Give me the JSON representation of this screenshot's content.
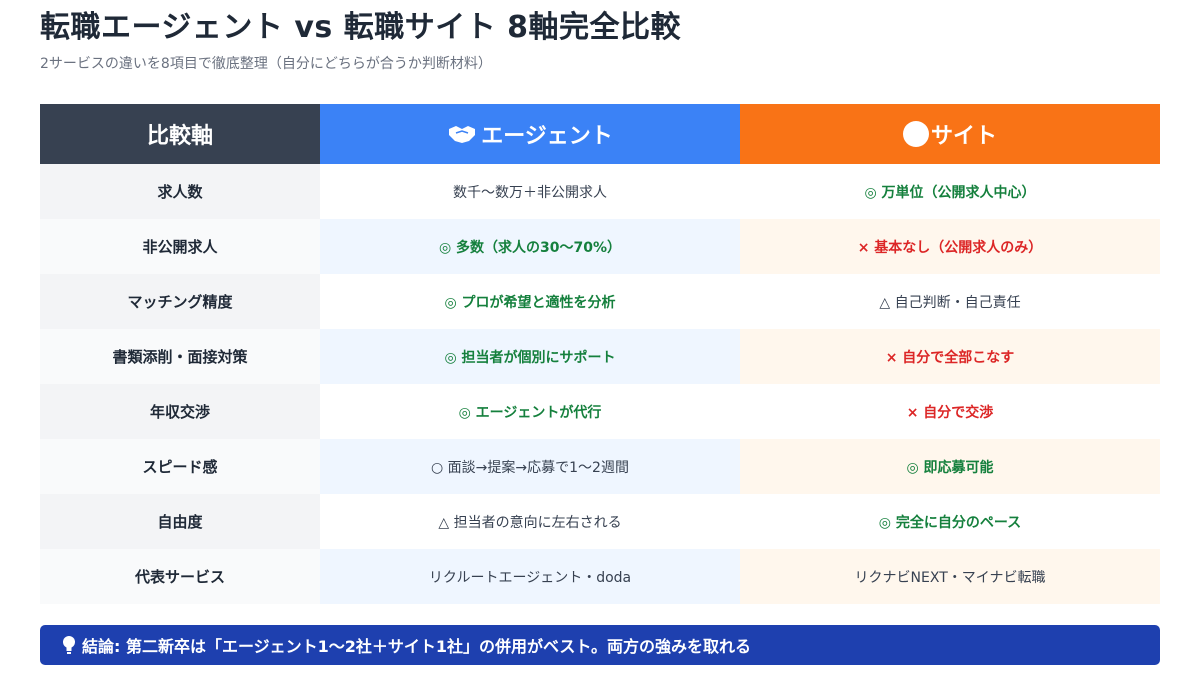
{
  "header": {
    "title": "転職エージェント vs 転職サイト 8軸完全比較",
    "subtitle": "2サービスの違いを8項目で徹底整理（自分にどちらが合うか判断材料）"
  },
  "table": {
    "columns": {
      "axis": "比較軸",
      "agent": "エージェント",
      "site": "サイト",
      "agent_icon": "handshake-icon",
      "site_icon": "globe-icon"
    },
    "rows": [
      {
        "axis": "求人数",
        "agent": "数千〜数万＋非公開求人",
        "agent_tone": "neutral",
        "site": "◎ 万単位（公開求人中心）",
        "site_tone": "good"
      },
      {
        "axis": "非公開求人",
        "agent": "◎ 多数（求人の30〜70%）",
        "agent_tone": "good",
        "site": "× 基本なし（公開求人のみ）",
        "site_tone": "bad"
      },
      {
        "axis": "マッチング精度",
        "agent": "◎ プロが希望と適性を分析",
        "agent_tone": "good",
        "site": "△ 自己判断・自己責任",
        "site_tone": "neutral"
      },
      {
        "axis": "書類添削・面接対策",
        "agent": "◎ 担当者が個別にサポート",
        "agent_tone": "good",
        "site": "× 自分で全部こなす",
        "site_tone": "bad"
      },
      {
        "axis": "年収交渉",
        "agent": "◎ エージェントが代行",
        "agent_tone": "good",
        "site": "× 自分で交渉",
        "site_tone": "bad"
      },
      {
        "axis": "スピード感",
        "agent": "○ 面談→提案→応募で1〜2週間",
        "agent_tone": "neutral",
        "site": "◎ 即応募可能",
        "site_tone": "good"
      },
      {
        "axis": "自由度",
        "agent": "△ 担当者の意向に左右される",
        "agent_tone": "neutral",
        "site": "◎ 完全に自分のペース",
        "site_tone": "good"
      },
      {
        "axis": "代表サービス",
        "agent": "リクルートエージェント・doda",
        "agent_tone": "neutral",
        "site": "リクナビNEXT・マイナビ転職",
        "site_tone": "neutral"
      }
    ]
  },
  "conclusion": {
    "icon": "lightbulb-icon",
    "text": "結論: 第二新卒は「エージェント1〜2社＋サイト1社」の併用がベスト。両方の強みを取れる"
  },
  "colors": {
    "axis_header": "#374151",
    "agent_header": "#3b82f6",
    "site_header": "#f97316",
    "good": "#15803d",
    "bad": "#dc2626",
    "conclusion_bg": "#1e40af"
  }
}
